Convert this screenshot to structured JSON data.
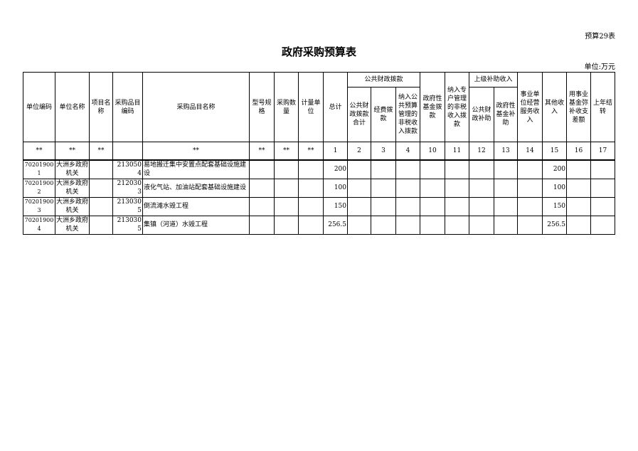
{
  "form_tag": "预算29表",
  "title": "政府采购预算表",
  "unit": "单位:万元",
  "headers": {
    "unit_code": "单位编码",
    "unit_name": "单位名称",
    "project_name": "项目名称",
    "item_code": "采购品目编码",
    "item_name": "采购品目名称",
    "spec": "型号规格",
    "qty": "采购数量",
    "measure": "计量单位",
    "total": "总计",
    "public_group": "公共财政拨款",
    "public_total": "公共财政拨款合计",
    "funding": "经费拨款",
    "nontax": "纳入公共预算管理的非税收入拨款",
    "gov_fund": "政府性基金拨款",
    "special_nontax": "纳入专户管理的非税收入拨款",
    "upper_group": "上级补助收入",
    "upper_public": "公共财政补助",
    "upper_fund": "政府性基金补助",
    "business": "事业单位经营服务收入",
    "other": "其他收入",
    "reserve": "用事业基金弥补收支差额",
    "carryover": "上年结转"
  },
  "index_row": [
    "**",
    "**",
    "**",
    "",
    "**",
    "**",
    "**",
    "**",
    "1",
    "2",
    "3",
    "4",
    "10",
    "11",
    "12",
    "13",
    "14",
    "15",
    "16",
    "17"
  ],
  "rows": [
    {
      "unit_code": "702019001",
      "unit_name": "大洲乡政府机关",
      "item_code": "2130504",
      "item_name": "易地搬迁集中安置点配套基础设施建设",
      "total": "200",
      "other": "200"
    },
    {
      "unit_code": "702019002",
      "unit_name": "大洲乡政府机关",
      "item_code": "2120303",
      "item_name": "液化气站、加油站配套基础设施建设",
      "total": "100",
      "other": "100"
    },
    {
      "unit_code": "702019003",
      "unit_name": "大洲乡政府机关",
      "item_code": "2130305",
      "item_name": "倒流滩水毁工程",
      "total": "150",
      "other": "150"
    },
    {
      "unit_code": "702019004",
      "unit_name": "大洲乡政府机关",
      "item_code": "2130305",
      "item_name": "集镇（河道）水毁工程",
      "total": "256.5",
      "other": "256.5"
    }
  ]
}
